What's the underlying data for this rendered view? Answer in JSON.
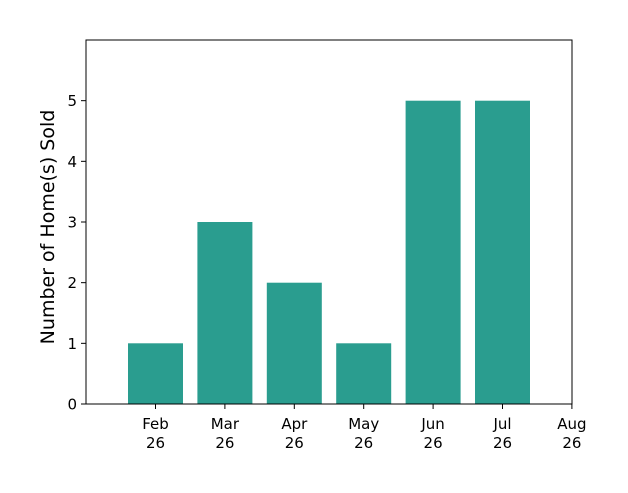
{
  "chart_data": {
    "type": "bar",
    "categories": [
      [
        "Feb",
        "26"
      ],
      [
        "Mar",
        "26"
      ],
      [
        "Apr",
        "26"
      ],
      [
        "May",
        "26"
      ],
      [
        "Jun",
        "26"
      ],
      [
        "Jul",
        "26"
      ]
    ],
    "values": [
      1,
      3,
      2,
      1,
      5,
      5
    ],
    "x_ticks": [
      [
        "Feb",
        "26"
      ],
      [
        "Mar",
        "26"
      ],
      [
        "Apr",
        "26"
      ],
      [
        "May",
        "26"
      ],
      [
        "Jun",
        "26"
      ],
      [
        "Jul",
        "26"
      ],
      [
        "Aug",
        "26"
      ]
    ],
    "y_ticks": [
      0,
      1,
      2,
      3,
      4,
      5
    ],
    "ylim": [
      0,
      6
    ],
    "title": "",
    "xlabel": "",
    "ylabel": "Number of Home(s) Sold",
    "bar_color": "#2a9d8f",
    "grid": false,
    "legend": "none"
  }
}
